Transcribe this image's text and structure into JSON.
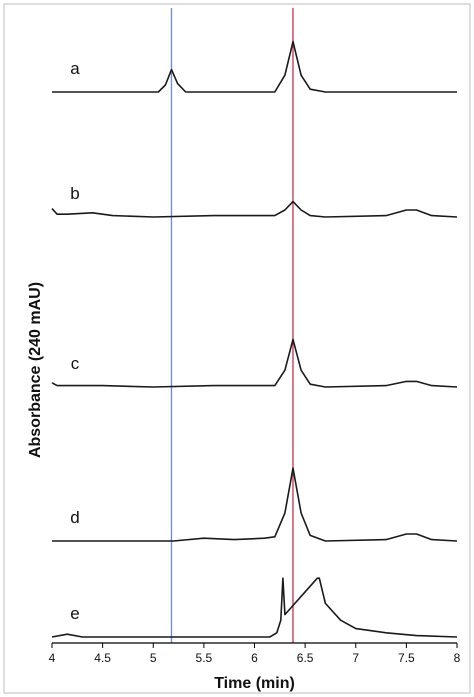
{
  "chart_data": {
    "type": "line",
    "xlabel": "Time (min)",
    "ylabel": "Absorbance (240 mAU)",
    "xlim": [
      4,
      8
    ],
    "x_ticks": [
      "4",
      "4.5",
      "5",
      "5.5",
      "6",
      "6.5",
      "7",
      "7.5",
      "8"
    ],
    "grid": false,
    "legend": "none",
    "reference_lines": [
      {
        "x": 5.18,
        "color": "#6f94c8"
      },
      {
        "x": 6.38,
        "color": "#c8405a"
      }
    ],
    "series": [
      {
        "name": "a",
        "x": [
          4.0,
          5.05,
          5.12,
          5.18,
          5.24,
          5.32,
          6.2,
          6.3,
          6.38,
          6.46,
          6.55,
          6.7,
          8.0
        ],
        "y": [
          0,
          0,
          0.25,
          0.8,
          0.3,
          0,
          0,
          0.6,
          1.8,
          0.6,
          0.1,
          0,
          0
        ]
      },
      {
        "name": "b",
        "x": [
          4.0,
          4.05,
          4.15,
          4.4,
          4.6,
          5.0,
          5.6,
          5.8,
          6.2,
          6.3,
          6.38,
          6.46,
          6.55,
          6.7,
          7.3,
          7.5,
          7.6,
          7.75,
          8.0
        ],
        "y": [
          0.3,
          0.1,
          0.1,
          0.15,
          0.05,
          0,
          0.05,
          0.05,
          0.05,
          0.25,
          0.55,
          0.25,
          0.05,
          0,
          0.05,
          0.25,
          0.25,
          0.05,
          0
        ]
      },
      {
        "name": "c",
        "x": [
          4.0,
          4.05,
          4.15,
          4.5,
          5.0,
          5.6,
          6.2,
          6.3,
          6.38,
          6.46,
          6.55,
          6.7,
          7.3,
          7.5,
          7.6,
          7.75,
          8.0
        ],
        "y": [
          0.15,
          0.05,
          0.05,
          0.05,
          0,
          0.05,
          0.05,
          0.6,
          1.7,
          0.6,
          0.1,
          0,
          0.05,
          0.2,
          0.2,
          0.05,
          0
        ]
      },
      {
        "name": "d",
        "x": [
          4.0,
          5.2,
          5.5,
          5.8,
          6.1,
          6.2,
          6.3,
          6.38,
          6.46,
          6.55,
          6.7,
          7.3,
          7.5,
          7.6,
          7.75,
          8.0
        ],
        "y": [
          0,
          0,
          0.1,
          0.05,
          0.1,
          0.15,
          1.0,
          2.6,
          1.0,
          0.2,
          0,
          0.05,
          0.25,
          0.25,
          0.05,
          0
        ]
      },
      {
        "name": "e",
        "x": [
          4.0,
          4.15,
          4.3,
          6.15,
          6.22,
          6.26,
          6.28,
          6.28,
          6.3,
          6.62,
          6.64,
          6.7,
          6.85,
          7.0,
          7.3,
          7.6,
          8.0
        ],
        "y": [
          0,
          0.1,
          0,
          0,
          0.15,
          0.6,
          2.1,
          2.1,
          0.8,
          2.1,
          2.1,
          1.2,
          0.6,
          0.3,
          0.15,
          0.05,
          0
        ]
      }
    ]
  }
}
